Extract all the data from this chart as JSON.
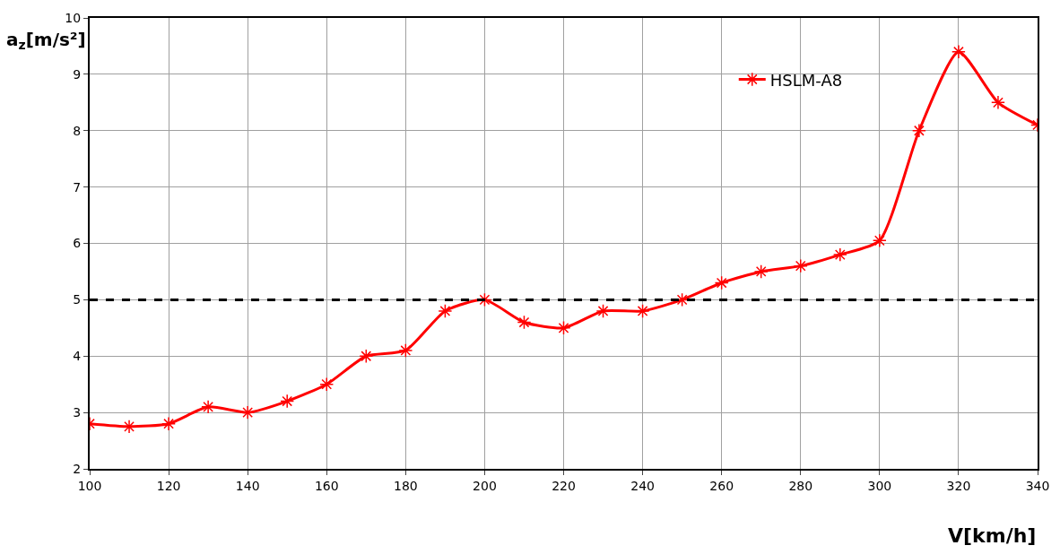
{
  "chart_data": {
    "type": "line",
    "xlabel": "V[km/h]",
    "ylabel": "a$_{z}$[m/s²]",
    "x": [
      100,
      110,
      120,
      130,
      140,
      150,
      160,
      170,
      180,
      190,
      200,
      210,
      220,
      230,
      240,
      250,
      260,
      270,
      280,
      290,
      300,
      310,
      320,
      330,
      340
    ],
    "series": [
      {
        "name": "HSLM-A8",
        "color": "#ff0000",
        "values": [
          2.8,
          2.75,
          2.8,
          3.1,
          3.0,
          3.2,
          3.5,
          4.0,
          4.1,
          4.8,
          5.0,
          4.6,
          4.5,
          4.8,
          4.8,
          5.0,
          5.3,
          5.5,
          5.6,
          5.8,
          6.05,
          8.0,
          9.4,
          8.5,
          8.1
        ]
      }
    ],
    "xlim": [
      100,
      340
    ],
    "xticks": [
      100,
      120,
      140,
      160,
      180,
      200,
      220,
      240,
      260,
      280,
      300,
      320,
      340
    ],
    "ylim": [
      2,
      10
    ],
    "yticks": [
      2,
      3,
      4,
      5,
      6,
      7,
      8,
      9,
      10
    ],
    "ref_lines": [
      {
        "axis": "y",
        "value": 5,
        "color": "#000000",
        "line_style": "dashed"
      }
    ],
    "grid": true,
    "legend": "top right",
    "marker": "cross",
    "line_style": "solid"
  }
}
